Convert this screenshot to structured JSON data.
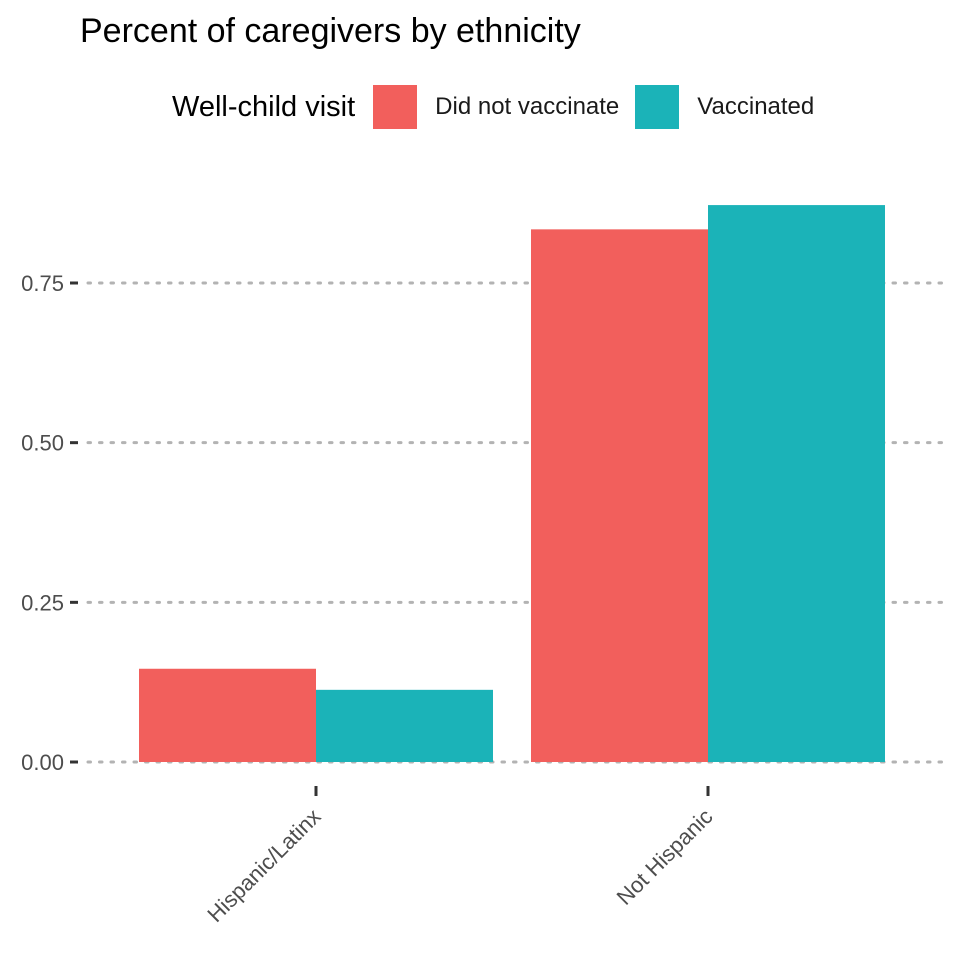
{
  "chart_data": {
    "type": "bar",
    "title": "Percent of caregivers by ethnicity",
    "legend": {
      "title": "Well-child visit",
      "position": "top"
    },
    "categories": [
      "Hispanic/Latinx",
      "Not Hispanic"
    ],
    "series": [
      {
        "name": "Did not vaccinate",
        "color": "#F25F5C",
        "values": [
          0.146,
          0.834
        ]
      },
      {
        "name": "Vaccinated",
        "color": "#1BB3B8",
        "values": [
          0.113,
          0.872
        ]
      }
    ],
    "y_ticks": [
      0.0,
      0.25,
      0.5,
      0.75
    ],
    "y_tick_labels": [
      "0.00",
      "0.25",
      "0.50",
      "0.75"
    ],
    "ylim": [
      0,
      0.9
    ],
    "grid": "horizontal-dotted",
    "xlabel": "",
    "ylabel": ""
  }
}
